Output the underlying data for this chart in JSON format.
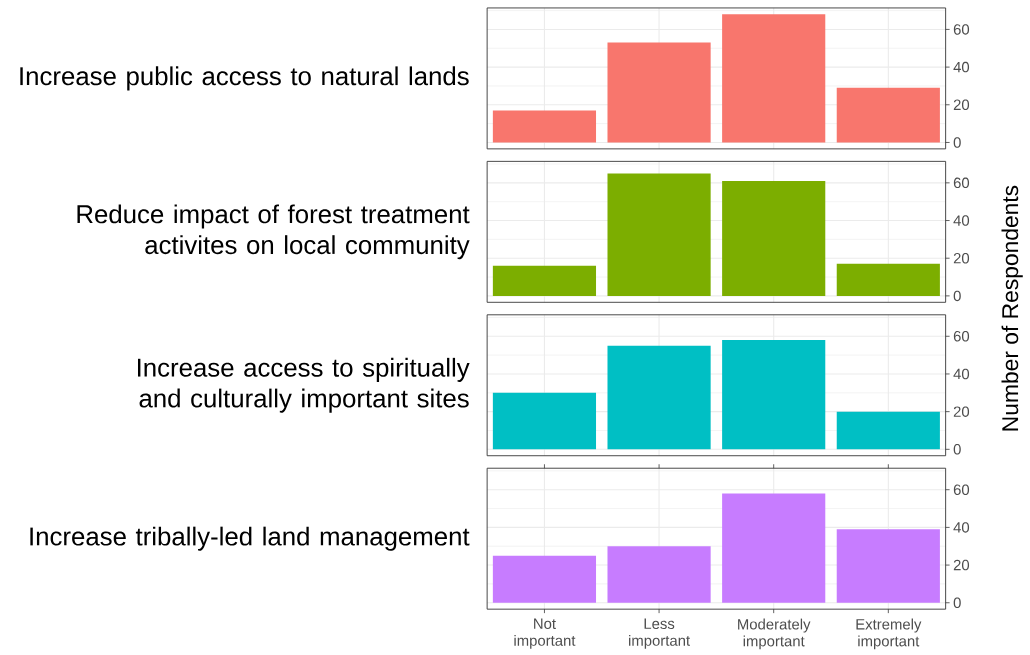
{
  "chart_data": [
    {
      "type": "bar",
      "title": "Increase public access to natural lands",
      "ylabel": "Number of Respondents",
      "values": [
        17,
        53,
        68,
        29
      ],
      "color": "#f8766d",
      "ylim": [
        -3.4,
        71.4
      ],
      "yticks": [
        0,
        20,
        40,
        60
      ],
      "grid": true,
      "tick_labels": "y"
    },
    {
      "type": "bar",
      "title": "Reduce impact of forest treatment activites on local community",
      "values": [
        16,
        65,
        61,
        17
      ],
      "color": "#7cae00",
      "ylim": [
        -3.4,
        71.4
      ],
      "yticks": [
        0,
        20,
        40,
        60
      ],
      "grid": true,
      "tick_labels": "y"
    },
    {
      "type": "bar",
      "title": "Increase access to spiritually and culturally important sites",
      "values": [
        30,
        55,
        58,
        20
      ],
      "color": "#00bfc4",
      "ylim": [
        -3.4,
        71.4
      ],
      "yticks": [
        0,
        20,
        40,
        60
      ],
      "grid": true,
      "tick_labels": "y"
    },
    {
      "type": "bar",
      "title": "Increase tribally-led land management",
      "categories": [
        "Not important",
        "Less important",
        "Moderately important",
        "Extremely important"
      ],
      "values": [
        25,
        30,
        58,
        39
      ],
      "color": "#c77cff",
      "ylim": [
        -3.4,
        71.4
      ],
      "yticks": [
        0,
        20,
        40,
        60
      ],
      "grid": true
    }
  ]
}
